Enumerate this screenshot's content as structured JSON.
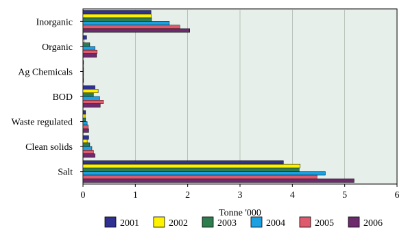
{
  "chart_data": {
    "type": "bar",
    "orientation": "horizontal",
    "categories": [
      "Inorganic",
      "Organic",
      "Ag Chemicals",
      "BOD",
      "Waste regulated",
      "Clean solids",
      "Salt"
    ],
    "series": [
      {
        "name": "2001",
        "color": "#2e3192",
        "values": [
          1.3,
          0.07,
          0.005,
          0.23,
          0.05,
          0.11,
          3.83
        ]
      },
      {
        "name": "2002",
        "color": "#fff200",
        "values": [
          1.3,
          0.02,
          0.005,
          0.29,
          0.04,
          0.08,
          4.15
        ]
      },
      {
        "name": "2003",
        "color": "#2e7d4f",
        "values": [
          1.31,
          0.13,
          0.005,
          0.2,
          0.05,
          0.13,
          4.13
        ]
      },
      {
        "name": "2004",
        "color": "#1ba1e2",
        "values": [
          1.65,
          0.23,
          0.005,
          0.32,
          0.08,
          0.17,
          4.63
        ]
      },
      {
        "name": "2005",
        "color": "#e05a6d",
        "values": [
          1.85,
          0.27,
          0.005,
          0.39,
          0.1,
          0.2,
          4.47
        ]
      },
      {
        "name": "2006",
        "color": "#6d2a6d",
        "values": [
          2.04,
          0.26,
          0.005,
          0.33,
          0.11,
          0.23,
          5.18
        ]
      }
    ],
    "xlabel": "Tonne '000",
    "xlim": [
      0,
      6
    ],
    "xticks": [
      "0",
      "1",
      "2",
      "3",
      "4",
      "5",
      "6"
    ],
    "plot_background": "#e6efe9",
    "grid": true,
    "legend_position": "bottom"
  }
}
